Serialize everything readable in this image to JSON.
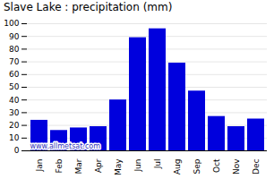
{
  "chart_data": {
    "type": "bar",
    "title": "Slave Lake : precipitation (mm)",
    "categories": [
      "Jan",
      "Feb",
      "Mar",
      "Apr",
      "May",
      "Jun",
      "Jul",
      "Aug",
      "Sep",
      "Oct",
      "Nov",
      "Dec"
    ],
    "values": [
      24,
      16,
      18,
      19,
      40,
      89,
      96,
      69,
      47,
      27,
      19,
      25
    ],
    "color": "#0000dd",
    "ylim": [
      0,
      100
    ],
    "yticks": [
      0,
      10,
      20,
      30,
      40,
      50,
      60,
      70,
      80,
      90,
      100
    ],
    "grid": true,
    "annotations": [
      {
        "text": "www.allmetsat.com",
        "color": "#3333bb"
      }
    ]
  }
}
